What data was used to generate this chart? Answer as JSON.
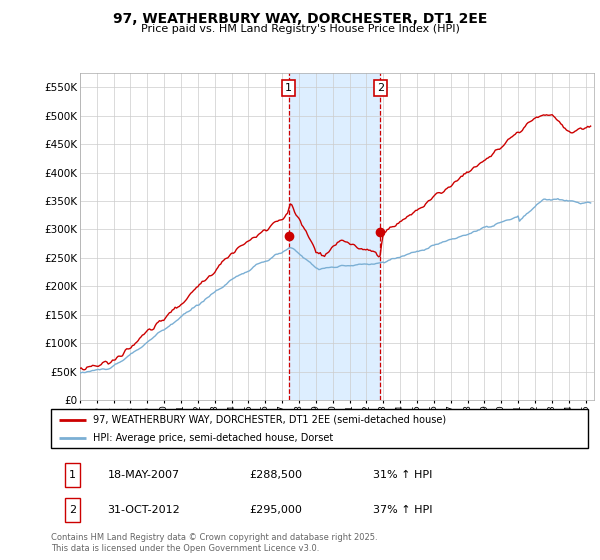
{
  "title": "97, WEATHERBURY WAY, DORCHESTER, DT1 2EE",
  "subtitle": "Price paid vs. HM Land Registry's House Price Index (HPI)",
  "ylim": [
    0,
    575000
  ],
  "yticks": [
    0,
    50000,
    100000,
    150000,
    200000,
    250000,
    300000,
    350000,
    400000,
    450000,
    500000,
    550000
  ],
  "legend_line1": "97, WEATHERBURY WAY, DORCHESTER, DT1 2EE (semi-detached house)",
  "legend_line2": "HPI: Average price, semi-detached house, Dorset",
  "annotation1_date": "18-MAY-2007",
  "annotation1_price": "£288,500",
  "annotation1_hpi": "31% ↑ HPI",
  "annotation2_date": "31-OCT-2012",
  "annotation2_price": "£295,000",
  "annotation2_hpi": "37% ↑ HPI",
  "footer": "Contains HM Land Registry data © Crown copyright and database right 2025.\nThis data is licensed under the Open Government Licence v3.0.",
  "red_color": "#cc0000",
  "blue_color": "#7bafd4",
  "shade_color": "#ddeeff",
  "marker1_year": 2007.38,
  "marker1_value": 288500,
  "marker2_year": 2012.83,
  "marker2_value": 295000,
  "vline1_x": 2007.38,
  "vline2_x": 2012.83,
  "xmin": 1995,
  "xmax": 2025.5
}
